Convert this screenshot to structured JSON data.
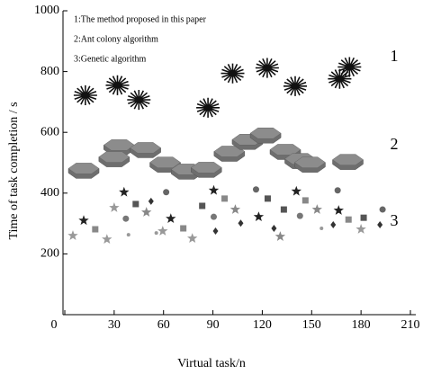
{
  "chart_data": {
    "type": "scatter",
    "x_label": "Virtual task/n",
    "y_label": "Time of task completion / s",
    "xlim": [
      0,
      210
    ],
    "xticks": [
      0,
      30,
      60,
      90,
      120,
      150,
      180,
      210
    ],
    "ylim": [
      0,
      1000
    ],
    "yticks": [
      200,
      400,
      600,
      800,
      1000
    ],
    "annotations": [
      "1",
      "2",
      "3"
    ],
    "series": [
      {
        "name": "1:The method proposed in this paper",
        "marker": "starburst",
        "color": "#111111",
        "x": [
          12.5,
          32,
          45,
          87,
          102,
          123,
          140,
          167,
          173
        ],
        "values": [
          722,
          755,
          707,
          681,
          794,
          812,
          752,
          776,
          815
        ]
      },
      {
        "name": "2:Ant colony algorithm",
        "marker": "hexagon",
        "color": "#8c8c8c",
        "x": [
          11.5,
          33,
          30,
          49,
          61,
          74,
          86,
          100,
          111,
          122,
          134,
          143,
          149,
          172
        ],
        "values": [
          481,
          558,
          519,
          549,
          501,
          478,
          484,
          537,
          576,
          597,
          543,
          513,
          501,
          510
        ]
      },
      {
        "name": "3:Genetic algorithm",
        "marker": "mixed",
        "x": [
          4.9,
          11.5,
          18.5,
          25.6,
          30,
          36,
          37.1,
          38.7,
          43.1,
          49.6,
          52.4,
          55.6,
          61.6,
          59.5,
          64.4,
          72,
          77.5,
          83.5,
          90.5,
          90.5,
          91.6,
          97.1,
          103.6,
          106.9,
          116.2,
          117.8,
          123.3,
          127.1,
          130.9,
          133.1,
          140.7,
          142.9,
          146.2,
          153.3,
          156,
          163.1,
          165.8,
          166.4,
          172.4,
          180,
          181.6,
          193.1,
          191.5
        ],
        "values": [
          260,
          310,
          281,
          248,
          352,
          403,
          316,
          263,
          364,
          337,
          373,
          269,
          403,
          275,
          316,
          284,
          251,
          358,
          409,
          322,
          275,
          382,
          346,
          301,
          412,
          322,
          382,
          284,
          257,
          346,
          406,
          325,
          376,
          346,
          284,
          296,
          409,
          343,
          313,
          281,
          319,
          346,
          296
        ],
        "markers": [
          "star",
          "star",
          "square",
          "star",
          "star",
          "star",
          "circle",
          "dot",
          "square",
          "star",
          "diamond",
          "dot",
          "circle",
          "star",
          "star",
          "square",
          "star",
          "square",
          "star",
          "circle",
          "diamond",
          "square",
          "star",
          "diamond",
          "circle",
          "star",
          "square",
          "diamond",
          "star",
          "square",
          "star",
          "circle",
          "square",
          "star",
          "dot",
          "diamond",
          "circle",
          "star",
          "square",
          "star",
          "square",
          "circle",
          "diamond"
        ],
        "colors": [
          "#999999",
          "#222222",
          "#888888",
          "#999999",
          "#999999",
          "#222222",
          "#777777",
          "#999999",
          "#555555",
          "#888888",
          "#333333",
          "#999999",
          "#666666",
          "#999999",
          "#222222",
          "#888888",
          "#999999",
          "#555555",
          "#222222",
          "#777777",
          "#333333",
          "#888888",
          "#888888",
          "#333333",
          "#666666",
          "#222222",
          "#555555",
          "#333333",
          "#888888",
          "#555555",
          "#222222",
          "#777777",
          "#888888",
          "#888888",
          "#999999",
          "#333333",
          "#666666",
          "#222222",
          "#888888",
          "#999999",
          "#555555",
          "#666666",
          "#333333"
        ]
      }
    ]
  }
}
